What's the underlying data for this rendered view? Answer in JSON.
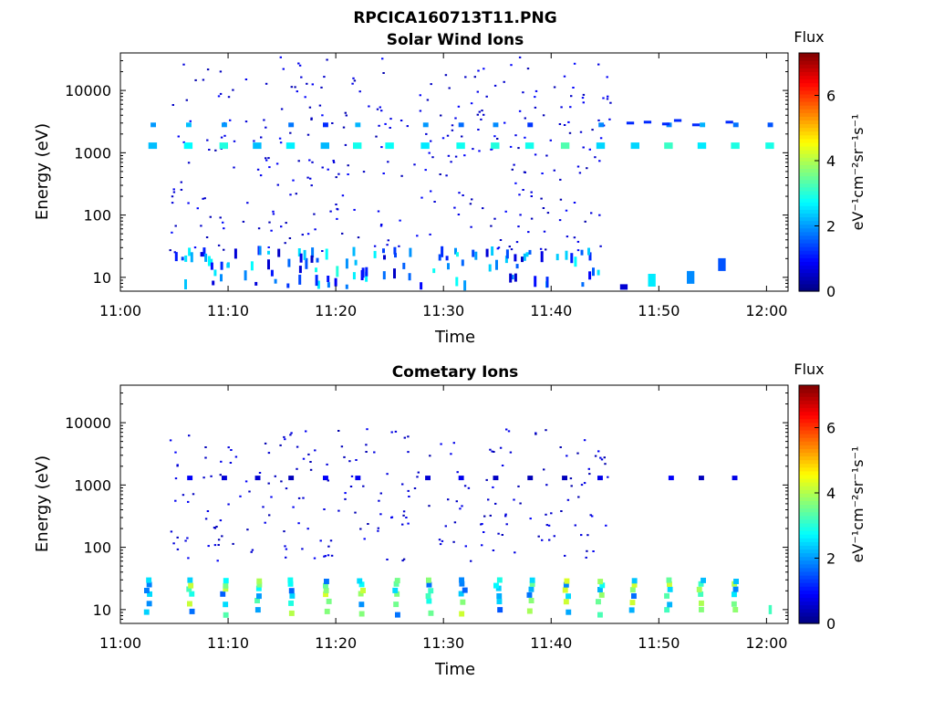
{
  "figure": {
    "file_title": "RPCICA160713T11.PNG"
  },
  "colorbar": {
    "title": "Flux",
    "label": "eV⁻¹cm⁻²sr⁻¹s⁻¹",
    "range": [
      0,
      7.3
    ],
    "ticks": [
      "0",
      "2",
      "4",
      "6"
    ],
    "colormap": "jet"
  },
  "chart_data": [
    {
      "type": "heatmap",
      "title": "Solar Wind Ions",
      "xlabel": "Time",
      "ylabel": "Energy (eV)",
      "xticks": [
        "11:00",
        "11:10",
        "11:20",
        "11:30",
        "11:40",
        "11:50",
        "12:00"
      ],
      "yticks": [
        "10",
        "100",
        "1000",
        "10000"
      ],
      "yscale": "log",
      "ylim": [
        6,
        40000
      ],
      "xlim": [
        "11:00",
        "12:02"
      ],
      "features": [
        {
          "desc": "periodic band near 1300 eV",
          "energy_eV": 1300,
          "flux_range": [
            1.5,
            3.5
          ]
        },
        {
          "desc": "sparse low-flux scatter",
          "energy_eV_range": [
            30,
            40000
          ],
          "flux_range": [
            0.3,
            1.0
          ]
        },
        {
          "desc": "low-energy bursts",
          "energy_eV_range": [
            7,
            30
          ],
          "flux_range": [
            0.5,
            3.0
          ]
        }
      ]
    },
    {
      "type": "heatmap",
      "title": "Cometary Ions",
      "xlabel": "Time",
      "ylabel": "Energy (eV)",
      "xticks": [
        "11:00",
        "11:10",
        "11:20",
        "11:30",
        "11:40",
        "11:50",
        "12:00"
      ],
      "yticks": [
        "10",
        "100",
        "1000",
        "10000"
      ],
      "yscale": "log",
      "ylim": [
        6,
        40000
      ],
      "xlim": [
        "11:00",
        "12:02"
      ],
      "features": [
        {
          "desc": "low-energy cometary ion bursts",
          "energy_eV_range": [
            7,
            30
          ],
          "flux_range": [
            1.0,
            4.5
          ]
        },
        {
          "desc": "sparse scatter",
          "energy_eV_range": [
            60,
            8000
          ],
          "flux_range": [
            0.3,
            1.0
          ]
        },
        {
          "desc": "short streaks near 1300 eV",
          "energy_eV": 1300,
          "flux_range": [
            0.4,
            0.9
          ]
        }
      ]
    }
  ]
}
